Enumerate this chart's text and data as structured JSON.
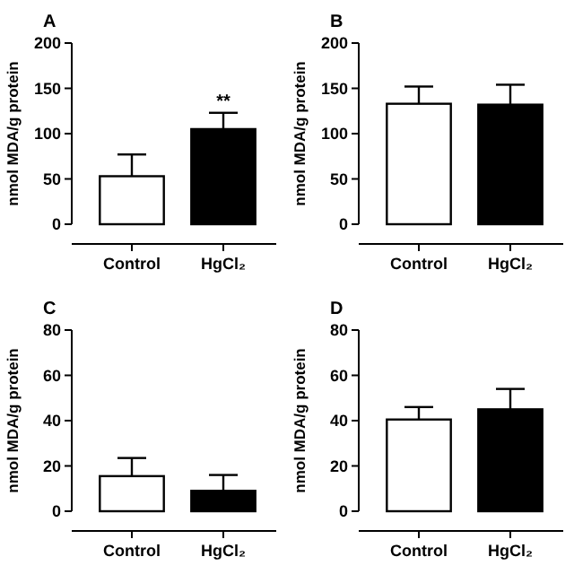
{
  "chart_data": [
    {
      "type": "bar",
      "title": "A",
      "ylabel": "nmol MDA/g protein",
      "categories": [
        "Control",
        "HgCl₂"
      ],
      "values": [
        53,
        105
      ],
      "colors": [
        "#ffffff",
        "#000000"
      ],
      "errors": [
        [
          53,
          77
        ],
        [
          105,
          123
        ]
      ],
      "ylim": [
        0,
        200
      ],
      "yticks": [
        0,
        50,
        100,
        150,
        200
      ],
      "annotations": [
        {
          "text": "**",
          "x": "HgCl₂",
          "y": 130
        }
      ]
    },
    {
      "type": "bar",
      "title": "B",
      "ylabel": "nmol MDA/g protein",
      "categories": [
        "Control",
        "HgCl₂"
      ],
      "values": [
        133,
        132
      ],
      "colors": [
        "#ffffff",
        "#000000"
      ],
      "errors": [
        [
          133,
          152
        ],
        [
          132,
          154
        ]
      ],
      "ylim": [
        0,
        200
      ],
      "yticks": [
        0,
        50,
        100,
        150,
        200
      ]
    },
    {
      "type": "bar",
      "title": "C",
      "ylabel": "nmol MDA/g protein",
      "categories": [
        "Control",
        "HgCl₂"
      ],
      "values": [
        15.5,
        9
      ],
      "colors": [
        "#ffffff",
        "#000000"
      ],
      "errors": [
        [
          15.5,
          23.5
        ],
        [
          9,
          16
        ]
      ],
      "ylim": [
        0,
        80
      ],
      "yticks": [
        0,
        20,
        40,
        60,
        80
      ]
    },
    {
      "type": "bar",
      "title": "D",
      "ylabel": "nmol MDA/g protein",
      "categories": [
        "Control",
        "HgCl₂"
      ],
      "values": [
        40.5,
        45
      ],
      "colors": [
        "#ffffff",
        "#000000"
      ],
      "errors": [
        [
          40.5,
          46
        ],
        [
          45,
          54
        ]
      ],
      "ylim": [
        0,
        80
      ],
      "yticks": [
        0,
        20,
        40,
        60,
        80
      ]
    }
  ]
}
